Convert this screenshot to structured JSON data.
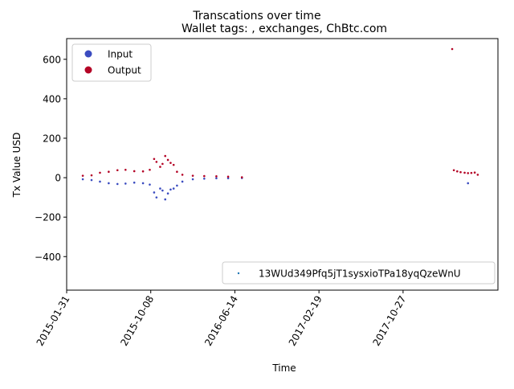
{
  "chart_data": {
    "type": "scatter",
    "title": "Transcations over time",
    "subtitle": "Wallet tags: , exchanges, ChBtc.com",
    "xlabel": "Time",
    "ylabel": "Tx Value USD",
    "xlim": [
      "2015-01-31",
      "2018-08-05"
    ],
    "ylim": [
      -570,
      705
    ],
    "x_ticks": [
      "2015-01-31",
      "2015-10-08",
      "2016-06-14",
      "2017-02-19",
      "2017-10-27"
    ],
    "y_ticks": [
      600,
      400,
      200,
      0,
      -200,
      -400
    ],
    "y_tick_labels": [
      "600",
      "400",
      "200",
      "0",
      "−200",
      "−400"
    ],
    "grid": false,
    "legend": {
      "placement": "upper-left",
      "entries": [
        {
          "label": "Input",
          "color": "#3b4cc0"
        },
        {
          "label": "Output",
          "color": "#b40426"
        }
      ]
    },
    "address_legend": {
      "placement": "lower-right",
      "label": "13WUd349Pfq5jT1sysxioTPa18yqQzeWnU",
      "color": "#1f77b4"
    },
    "series": [
      {
        "name": "Input",
        "color": "#3b4cc0",
        "points": [
          {
            "x": "2015-03-20",
            "y": -8
          },
          {
            "x": "2015-04-15",
            "y": -12
          },
          {
            "x": "2015-05-10",
            "y": -20
          },
          {
            "x": "2015-06-05",
            "y": -28
          },
          {
            "x": "2015-07-01",
            "y": -32
          },
          {
            "x": "2015-07-25",
            "y": -30
          },
          {
            "x": "2015-08-20",
            "y": -25
          },
          {
            "x": "2015-09-15",
            "y": -28
          },
          {
            "x": "2015-10-05",
            "y": -35
          },
          {
            "x": "2015-10-18",
            "y": -75
          },
          {
            "x": "2015-10-25",
            "y": -100
          },
          {
            "x": "2015-11-05",
            "y": -55
          },
          {
            "x": "2015-11-12",
            "y": -65
          },
          {
            "x": "2015-11-20",
            "y": -110
          },
          {
            "x": "2015-11-28",
            "y": -80
          },
          {
            "x": "2015-12-06",
            "y": -60
          },
          {
            "x": "2015-12-15",
            "y": -55
          },
          {
            "x": "2015-12-25",
            "y": -40
          },
          {
            "x": "2016-01-10",
            "y": -20
          },
          {
            "x": "2016-02-10",
            "y": -8
          },
          {
            "x": "2016-03-15",
            "y": -5
          },
          {
            "x": "2016-04-20",
            "y": -3
          },
          {
            "x": "2016-05-25",
            "y": -3
          },
          {
            "x": "2016-07-05",
            "y": -2
          },
          {
            "x": "2018-05-08",
            "y": -28
          }
        ]
      },
      {
        "name": "Output",
        "color": "#b40426",
        "points": [
          {
            "x": "2015-03-20",
            "y": 10
          },
          {
            "x": "2015-04-15",
            "y": 12
          },
          {
            "x": "2015-05-10",
            "y": 25
          },
          {
            "x": "2015-06-05",
            "y": 30
          },
          {
            "x": "2015-07-01",
            "y": 38
          },
          {
            "x": "2015-07-25",
            "y": 40
          },
          {
            "x": "2015-08-20",
            "y": 33
          },
          {
            "x": "2015-09-15",
            "y": 32
          },
          {
            "x": "2015-10-05",
            "y": 40
          },
          {
            "x": "2015-10-18",
            "y": 95
          },
          {
            "x": "2015-10-25",
            "y": 80
          },
          {
            "x": "2015-11-05",
            "y": 55
          },
          {
            "x": "2015-11-12",
            "y": 70
          },
          {
            "x": "2015-11-20",
            "y": 110
          },
          {
            "x": "2015-11-28",
            "y": 90
          },
          {
            "x": "2015-12-06",
            "y": 75
          },
          {
            "x": "2015-12-15",
            "y": 65
          },
          {
            "x": "2015-12-25",
            "y": 30
          },
          {
            "x": "2016-01-10",
            "y": 15
          },
          {
            "x": "2016-02-10",
            "y": 10
          },
          {
            "x": "2016-03-15",
            "y": 8
          },
          {
            "x": "2016-04-20",
            "y": 7
          },
          {
            "x": "2016-05-25",
            "y": 5
          },
          {
            "x": "2016-07-05",
            "y": 2
          },
          {
            "x": "2018-03-22",
            "y": 652
          },
          {
            "x": "2018-03-27",
            "y": 38
          },
          {
            "x": "2018-04-06",
            "y": 32
          },
          {
            "x": "2018-04-16",
            "y": 28
          },
          {
            "x": "2018-04-28",
            "y": 25
          },
          {
            "x": "2018-05-08",
            "y": 23
          },
          {
            "x": "2018-05-18",
            "y": 24
          },
          {
            "x": "2018-05-28",
            "y": 26
          },
          {
            "x": "2018-06-06",
            "y": 15
          }
        ]
      }
    ]
  }
}
